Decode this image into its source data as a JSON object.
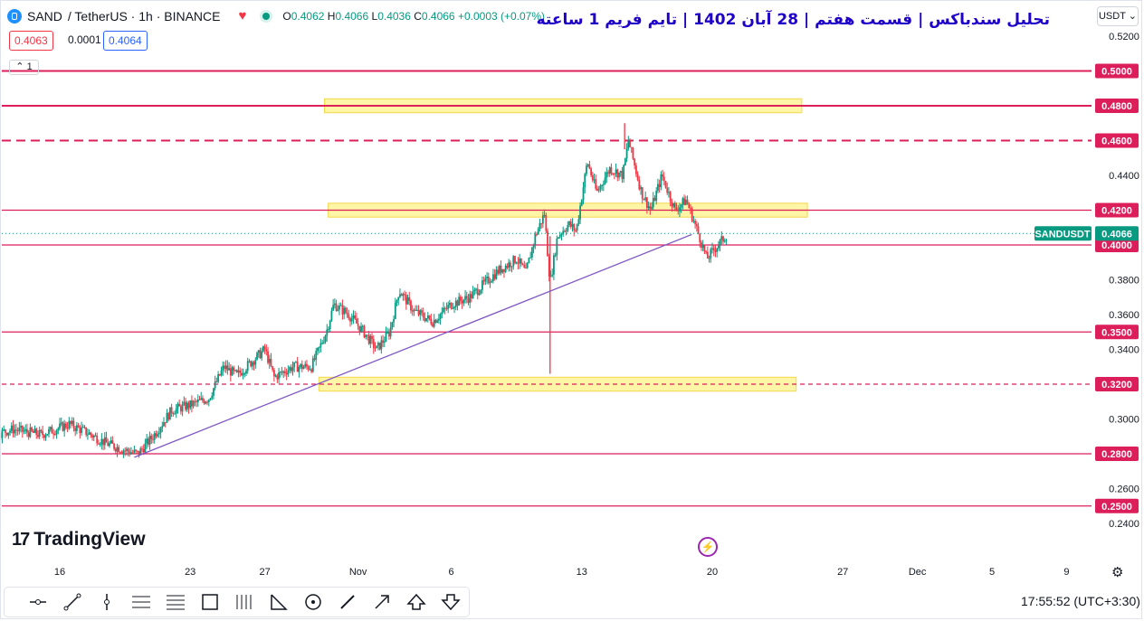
{
  "header": {
    "symbol": "SAND",
    "pair_text": "/ TetherUS · 1h · BINANCE",
    "ohlc": {
      "o_label": "O",
      "o": "0.4062",
      "h_label": "H",
      "h": "0.4066",
      "l_label": "L",
      "l": "0.4036",
      "c_label": "C",
      "c": "0.4066",
      "change": "+0.0003 (+0.07%)"
    },
    "sell_price": "0.4063",
    "spread": "0.0001",
    "buy_price": "0.4064",
    "indicator_count": "1",
    "icons": [
      "sand-logo-icon",
      "heart-icon",
      "market-status-icon",
      "chevron-up-icon"
    ]
  },
  "title": "تحلیل سندباکس | قسمت هفتم | 28 آبان 1402 | تایم فریم 1 ساعته",
  "currency": "USDT",
  "brand": "TradingView",
  "time": "17:55:52",
  "timezone": "(UTC+3:30)",
  "colors": {
    "up": "#089981",
    "down": "#f23645",
    "level": "#dc1f5a",
    "trend": "#7e57c2",
    "zone": "#fff59d",
    "zone_border": "#f5d33a",
    "title": "#1e00c8"
  },
  "toolbar": {
    "icons": [
      "horizontal-ray-icon",
      "trend-line-icon",
      "vertical-line-icon",
      "parallel-channel-icon",
      "fib-retracement-icon",
      "rectangle-icon",
      "long-position-icon",
      "triangle-pattern-icon",
      "circle-icon",
      "pen-icon",
      "arrow-icon",
      "arrow-up-icon",
      "arrow-down-icon"
    ]
  },
  "chart_data": {
    "type": "candlestick",
    "title": "تحلیل سندباکس | قسمت هفتم | 28 آبان 1402 | تایم فریم 1 ساعته",
    "symbol": "SANDUSDT",
    "interval": "1h",
    "last_price": 0.4066,
    "ylim": [
      0.235,
      0.53
    ],
    "y_ticks": [
      "0.2400",
      "0.2600",
      "0.3000",
      "0.3400",
      "0.3600",
      "0.3800",
      "0.4400",
      "0.5200"
    ],
    "x_ticks": [
      {
        "label": "16",
        "day": 16
      },
      {
        "label": "23",
        "day": 23
      },
      {
        "label": "27",
        "day": 27
      },
      {
        "label": "Nov",
        "day": 32
      },
      {
        "label": "6",
        "day": 37
      },
      {
        "label": "13",
        "day": 44
      },
      {
        "label": "20",
        "day": 51
      },
      {
        "label": "27",
        "day": 58
      },
      {
        "label": "Dec",
        "day": 62
      },
      {
        "label": "5",
        "day": 66
      },
      {
        "label": "9",
        "day": 70
      }
    ],
    "horizontal_levels": [
      {
        "value": 0.5,
        "label": "0.5000",
        "style": "solid"
      },
      {
        "value": 0.48,
        "label": "0.4800",
        "style": "solid"
      },
      {
        "value": 0.46,
        "label": "0.4600",
        "style": "dashed"
      },
      {
        "value": 0.42,
        "label": "0.4200",
        "style": "solid"
      },
      {
        "value": 0.4,
        "label": "0.4000",
        "style": "solid"
      },
      {
        "value": 0.35,
        "label": "0.3500",
        "style": "solid"
      },
      {
        "value": 0.32,
        "label": "0.3200",
        "style": "dashed"
      },
      {
        "value": 0.28,
        "label": "0.2800",
        "style": "solid"
      },
      {
        "value": 0.25,
        "label": "0.2500",
        "style": "solid"
      }
    ],
    "zones": [
      {
        "day_from": 30.2,
        "day_to": 55.8,
        "y_from": 0.476,
        "y_to": 0.484
      },
      {
        "day_from": 30.4,
        "day_to": 56.1,
        "y_from": 0.416,
        "y_to": 0.424
      },
      {
        "day_from": 29.9,
        "day_to": 55.5,
        "y_from": 0.316,
        "y_to": 0.324
      }
    ],
    "trendline": {
      "from": {
        "day": 20.0,
        "y": 0.278
      },
      "to": {
        "day": 49.9,
        "y": 0.406
      }
    },
    "price_series": [
      {
        "day": 9.0,
        "close": 0.278
      },
      {
        "day": 10.5,
        "close": 0.286
      },
      {
        "day": 12.0,
        "close": 0.29
      },
      {
        "day": 13.5,
        "close": 0.294
      },
      {
        "day": 15.0,
        "close": 0.291
      },
      {
        "day": 16.5,
        "close": 0.297
      },
      {
        "day": 17.5,
        "close": 0.292
      },
      {
        "day": 18.5,
        "close": 0.286
      },
      {
        "day": 19.5,
        "close": 0.282
      },
      {
        "day": 20.2,
        "close": 0.28
      },
      {
        "day": 21.0,
        "close": 0.29
      },
      {
        "day": 22.0,
        "close": 0.305
      },
      {
        "day": 23.0,
        "close": 0.308
      },
      {
        "day": 24.0,
        "close": 0.312
      },
      {
        "day": 24.8,
        "close": 0.33
      },
      {
        "day": 25.5,
        "close": 0.325
      },
      {
        "day": 26.5,
        "close": 0.335
      },
      {
        "day": 27.0,
        "close": 0.34
      },
      {
        "day": 27.5,
        "close": 0.324
      },
      {
        "day": 28.5,
        "close": 0.33
      },
      {
        "day": 29.5,
        "close": 0.33
      },
      {
        "day": 30.3,
        "close": 0.35
      },
      {
        "day": 30.7,
        "close": 0.366
      },
      {
        "day": 31.5,
        "close": 0.36
      },
      {
        "day": 32.3,
        "close": 0.35
      },
      {
        "day": 33.0,
        "close": 0.34
      },
      {
        "day": 33.7,
        "close": 0.35
      },
      {
        "day": 34.2,
        "close": 0.374
      },
      {
        "day": 35.0,
        "close": 0.362
      },
      {
        "day": 36.0,
        "close": 0.356
      },
      {
        "day": 37.0,
        "close": 0.366
      },
      {
        "day": 38.0,
        "close": 0.37
      },
      {
        "day": 38.8,
        "close": 0.378
      },
      {
        "day": 39.5,
        "close": 0.385
      },
      {
        "day": 40.5,
        "close": 0.392
      },
      {
        "day": 41.0,
        "close": 0.384
      },
      {
        "day": 41.5,
        "close": 0.405
      },
      {
        "day": 42.0,
        "close": 0.418
      },
      {
        "day": 42.3,
        "close": 0.378
      },
      {
        "day": 42.7,
        "close": 0.405
      },
      {
        "day": 43.3,
        "close": 0.412
      },
      {
        "day": 43.7,
        "close": 0.408
      },
      {
        "day": 44.3,
        "close": 0.448
      },
      {
        "day": 44.8,
        "close": 0.43
      },
      {
        "day": 45.5,
        "close": 0.444
      },
      {
        "day": 46.2,
        "close": 0.44
      },
      {
        "day": 46.5,
        "close": 0.46
      },
      {
        "day": 47.2,
        "close": 0.43
      },
      {
        "day": 47.7,
        "close": 0.42
      },
      {
        "day": 48.3,
        "close": 0.44
      },
      {
        "day": 49.0,
        "close": 0.42
      },
      {
        "day": 49.6,
        "close": 0.426
      },
      {
        "day": 50.3,
        "close": 0.405
      },
      {
        "day": 50.7,
        "close": 0.392
      },
      {
        "day": 51.3,
        "close": 0.4
      },
      {
        "day": 51.8,
        "close": 0.406
      }
    ],
    "wicks": [
      {
        "day": 42.3,
        "high": 0.405,
        "low": 0.326
      },
      {
        "day": 46.3,
        "high": 0.47,
        "low": 0.455
      }
    ],
    "symbol_badge": "SANDUSDT",
    "price_badge": "0.4066",
    "grid": false
  }
}
